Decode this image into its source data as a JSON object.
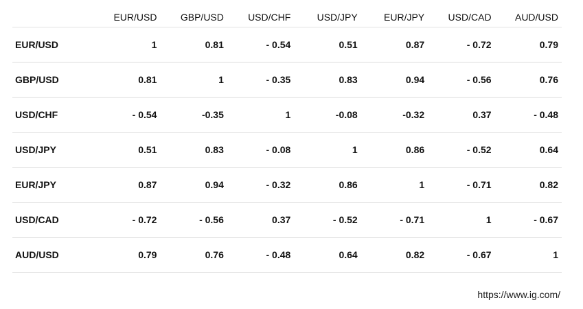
{
  "table": {
    "columns": [
      "EUR/USD",
      "GBP/USD",
      "USD/CHF",
      "USD/JPY",
      "EUR/JPY",
      "USD/CAD",
      "AUD/USD"
    ],
    "rows": [
      {
        "label": "EUR/USD",
        "values": [
          "1",
          "0.81",
          "- 0.54",
          "0.51",
          "0.87",
          "- 0.72",
          "0.79"
        ]
      },
      {
        "label": "GBP/USD",
        "values": [
          "0.81",
          "1",
          "- 0.35",
          "0.83",
          "0.94",
          "- 0.56",
          "0.76"
        ]
      },
      {
        "label": "USD/CHF",
        "values": [
          "- 0.54",
          "-0.35",
          "1",
          "-0.08",
          "-0.32",
          "0.37",
          "- 0.48"
        ]
      },
      {
        "label": "USD/JPY",
        "values": [
          "0.51",
          "0.83",
          "- 0.08",
          "1",
          "0.86",
          "- 0.52",
          "0.64"
        ]
      },
      {
        "label": "EUR/JPY",
        "values": [
          "0.87",
          "0.94",
          "- 0.32",
          "0.86",
          "1",
          "- 0.71",
          "0.82"
        ]
      },
      {
        "label": "USD/CAD",
        "values": [
          "- 0.72",
          "- 0.56",
          "0.37",
          "- 0.52",
          "- 0.71",
          "1",
          "- 0.67"
        ]
      },
      {
        "label": "AUD/USD",
        "values": [
          "0.79",
          "0.76",
          "- 0.48",
          "0.64",
          "0.82",
          "- 0.67",
          "1"
        ]
      }
    ]
  },
  "source_url": "https://www.ig.com/"
}
